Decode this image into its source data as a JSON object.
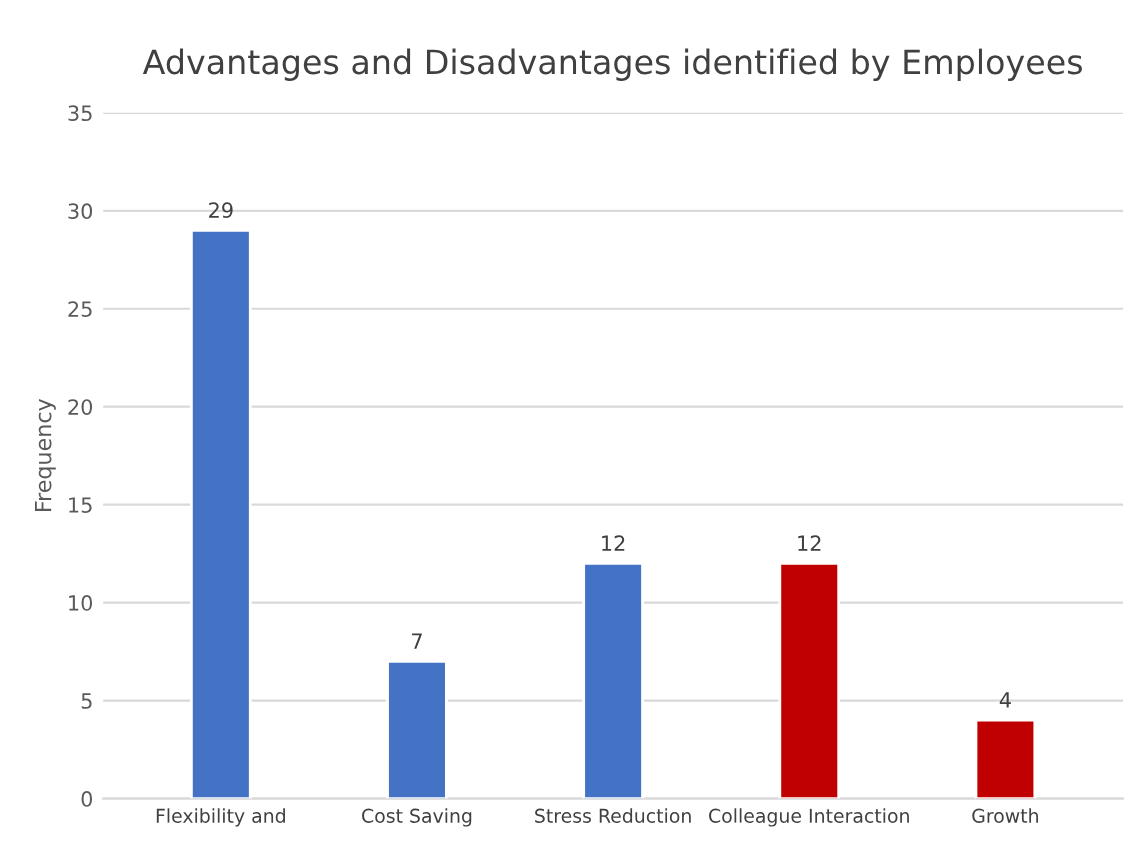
{
  "chart_data": {
    "type": "bar",
    "title": "Advantages and Disadvantages identified by Employees",
    "ylabel": "Frequency",
    "categories": [
      "Flexibility and",
      "Cost Saving",
      "Stress Reduction",
      "Colleague Interaction",
      "Growth"
    ],
    "values": [
      29,
      7,
      12,
      12,
      4
    ],
    "colors": [
      "#4472c4",
      "#4472c4",
      "#4472c4",
      "#c00000",
      "#c00000"
    ],
    "ylim": [
      0,
      35
    ],
    "yticks": [
      0,
      5,
      10,
      15,
      20,
      25,
      30,
      35
    ],
    "grid": "y",
    "data_labels": true
  }
}
